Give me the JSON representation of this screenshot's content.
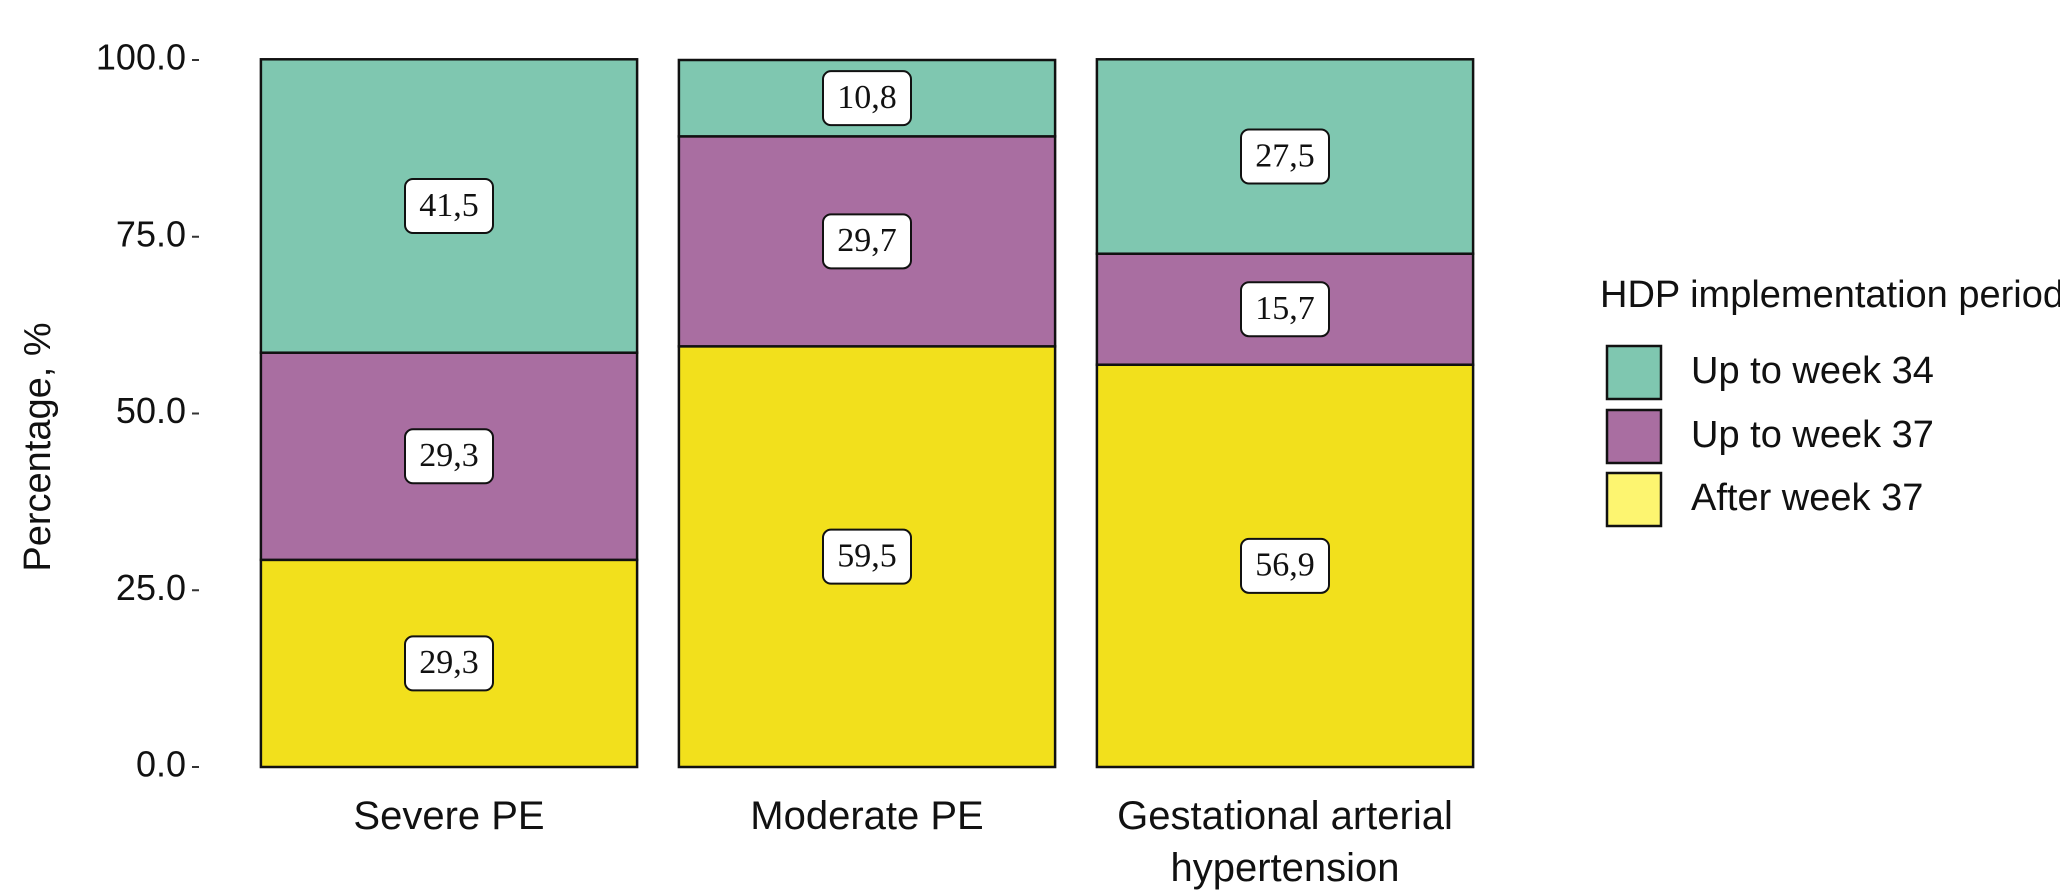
{
  "chart_data": {
    "type": "stacked_bar",
    "categories": [
      "Severe PE",
      "Moderate PE",
      "Gestational arterial hypertension"
    ],
    "series": [
      {
        "name": "Up to week 34",
        "color": "#7fc7b0",
        "values": [
          41.5,
          10.8,
          27.5
        ],
        "value_labels": [
          "41,5",
          "10,8",
          "27,5"
        ]
      },
      {
        "name": "Up to week 37",
        "color": "#a96ea1",
        "values": [
          29.3,
          29.7,
          15.7
        ],
        "value_labels": [
          "29,3",
          "29,7",
          "15,7"
        ]
      },
      {
        "name": "After week 37",
        "color": "#f2e01c",
        "values": [
          29.3,
          59.5,
          56.9
        ],
        "value_labels": [
          "29,3",
          "59,5",
          "56,9"
        ]
      }
    ],
    "y_label": "Percentage, %",
    "legend_title": "HDP implementation period",
    "legend_colors": [
      "#7fc7b0",
      "#a96ea1",
      "#fdf570"
    ],
    "ylim": [
      0,
      100
    ],
    "yticks": [
      {
        "value": 0,
        "label": "0.0"
      },
      {
        "value": 25,
        "label": "25.0"
      },
      {
        "value": 50,
        "label": "50.0"
      },
      {
        "value": 75,
        "label": "75.0"
      },
      {
        "value": 100,
        "label": "100.0"
      }
    ],
    "legend": "right"
  }
}
